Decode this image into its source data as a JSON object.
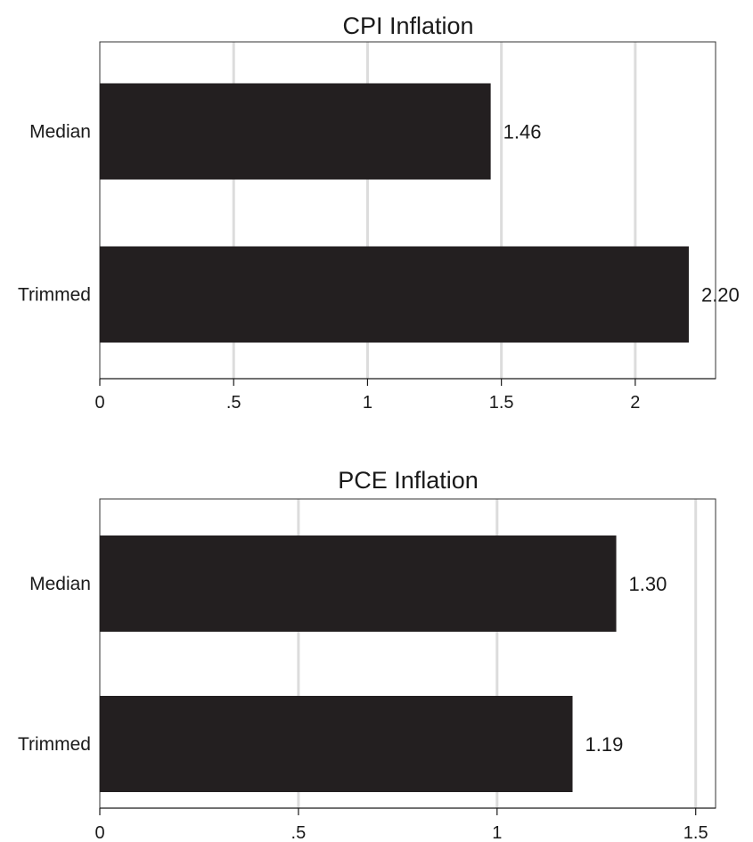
{
  "chart_data": [
    {
      "type": "bar",
      "orientation": "horizontal",
      "title": "CPI Inflation",
      "categories": [
        "Median",
        "Trimmed"
      ],
      "values": [
        1.46,
        2.2
      ],
      "value_labels": [
        "1.46",
        "2.20"
      ],
      "xlim": [
        0,
        2.3
      ],
      "x_ticks": [
        0,
        0.5,
        1,
        1.5,
        2
      ],
      "x_tick_labels": [
        "0",
        ".5",
        "1",
        "1.5",
        "2"
      ],
      "grid": true,
      "bar_color": "#231f20",
      "grid_color": "#dcdcdc"
    },
    {
      "type": "bar",
      "orientation": "horizontal",
      "title": "PCE Inflation",
      "categories": [
        "Median",
        "Trimmed"
      ],
      "values": [
        1.3,
        1.19
      ],
      "value_labels": [
        "1.30",
        "1.19"
      ],
      "xlim": [
        0,
        1.55
      ],
      "x_ticks": [
        0,
        0.5,
        1,
        1.5
      ],
      "x_tick_labels": [
        "0",
        ".5",
        "1",
        "1.5"
      ],
      "grid": true,
      "bar_color": "#231f20",
      "grid_color": "#dcdcdc"
    }
  ]
}
